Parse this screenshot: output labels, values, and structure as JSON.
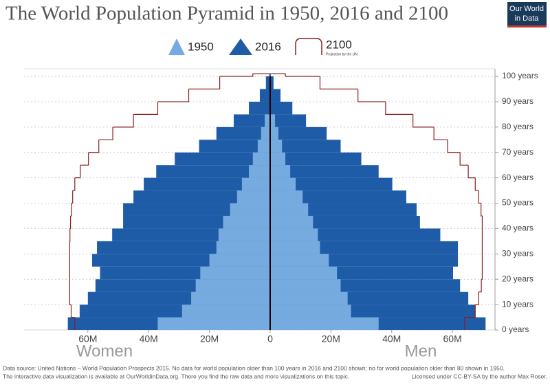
{
  "chart_data": {
    "type": "pyramid",
    "title": "The World Population Pyramid in 1950, 2016 and 2100",
    "logo": [
      "Our World",
      "in Data"
    ],
    "ages": [
      0,
      5,
      10,
      15,
      20,
      25,
      30,
      35,
      40,
      45,
      50,
      55,
      60,
      65,
      70,
      75,
      80,
      85,
      90,
      95,
      100
    ],
    "series": [
      {
        "name": "1950",
        "color": "#76abdf",
        "style": "filled",
        "women": [
          37,
          29,
          26,
          24.5,
          23,
          20,
          17.7,
          17,
          15.5,
          13.2,
          10.9,
          9.3,
          7,
          5.7,
          4.1,
          3,
          1.8,
          null,
          null,
          null,
          null
        ],
        "men": [
          35.7,
          26.6,
          25.5,
          23.2,
          22,
          19.3,
          16.4,
          15.7,
          14.1,
          12.5,
          10.7,
          8.4,
          6.6,
          5,
          3.9,
          2.7,
          1.6,
          null,
          null,
          null,
          null
        ]
      },
      {
        "name": "2016",
        "color": "#1f5ca8",
        "style": "filled",
        "women": [
          66.6,
          62.7,
          60,
          57.5,
          56,
          58.6,
          57,
          52,
          48.4,
          48.4,
          45,
          41.6,
          37.5,
          31.4,
          23.4,
          17.7,
          12,
          7,
          3.4,
          1.4,
          0.3
        ],
        "men": [
          70.9,
          67.5,
          65.2,
          62.5,
          60.2,
          61.8,
          61.8,
          56,
          49.3,
          48.2,
          44.8,
          40.2,
          35.7,
          30,
          23.2,
          18.6,
          11.8,
          7.3,
          3.4,
          1.1,
          0.2
        ]
      },
      {
        "name": "2100",
        "color": "#8b1e1e",
        "style": "outline",
        "note": "Projection by the UN",
        "women": [
          64.3,
          65.5,
          66,
          66,
          66,
          66,
          66,
          65.9,
          65.7,
          65.4,
          65,
          64.3,
          62.5,
          59.8,
          56.4,
          51.8,
          45,
          37,
          26.8,
          16.6,
          5.7
        ],
        "men": [
          64,
          67.5,
          68.6,
          69.5,
          69.8,
          69.8,
          69.8,
          69.8,
          69.8,
          69.4,
          68.6,
          67.5,
          65.2,
          62.5,
          58.4,
          53.9,
          47,
          38,
          28.9,
          16.4,
          5
        ]
      }
    ],
    "xlim": [
      -81,
      74
    ],
    "xticks": [
      {
        "value": -60,
        "label": "60M"
      },
      {
        "value": -40,
        "label": "40M"
      },
      {
        "value": -20,
        "label": "20M"
      },
      0,
      {
        "value": 20,
        "label": "20M"
      },
      {
        "value": 40,
        "label": "40M"
      },
      {
        "value": 60,
        "label": "60M"
      }
    ],
    "ylim": [
      0,
      103
    ],
    "yticks": [
      {
        "value": 0,
        "label": "0 years"
      },
      {
        "value": 10,
        "label": "10 years"
      },
      {
        "value": 20,
        "label": "20 years"
      },
      {
        "value": 30,
        "label": "30 years"
      },
      {
        "value": 40,
        "label": "40 years"
      },
      {
        "value": 50,
        "label": "50 years"
      },
      {
        "value": 60,
        "label": "60 years"
      },
      {
        "value": 70,
        "label": "70 years"
      },
      {
        "value": 80,
        "label": "80 years"
      },
      {
        "value": 90,
        "label": "90 years"
      },
      {
        "value": 100,
        "label": "100 years"
      }
    ],
    "grid": true,
    "left_label": "Women",
    "right_label": "Men",
    "footer": {
      "source": "Data source: United Nations – World Population Prospects 2015. No data for world population older than 100 years in 2016 and 2100 shown; no for world population older than 80 shown in 1950.",
      "link": "The interactive data visualization is available at OurWorldinData.org. There you find the raw data and more visualizations on this topic.",
      "license": "Licensed under CC-BY-SA by the author Max Roser."
    }
  }
}
